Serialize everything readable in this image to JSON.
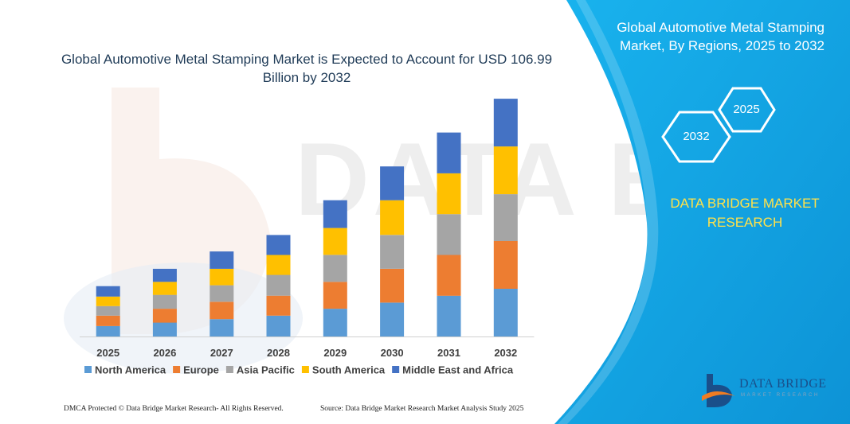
{
  "chart_title": "Global Automotive Metal Stamping Market is Expected to Account for USD 106.99 Billion by 2032",
  "side_panel": {
    "title": "Global Automotive Metal Stamping Market, By Regions, 2025 to 2032",
    "hex_2032": "2032",
    "hex_2025": "2025",
    "brand": "DATA BRIDGE MARKET RESEARCH",
    "panel_color": "#12a8e6"
  },
  "footer": {
    "left": "DMCA Protected © Data Bridge Market Research-  All Rights Reserved.",
    "right": "Source: Data Bridge Market Research  Market Analysis Study 2025"
  },
  "logo": {
    "name": "DATA BRIDGE",
    "sub": "MARKET RESEARCH"
  },
  "chart_data": {
    "type": "bar",
    "stacked": true,
    "title": "Global Automotive Metal Stamping Market is Expected to Account for USD 106.99 Billion by 2032",
    "xlabel": "",
    "ylabel": "",
    "grid": false,
    "legend_position": "bottom",
    "ylim": [
      0,
      275
    ],
    "categories": [
      "2025",
      "2026",
      "2027",
      "2028",
      "2029",
      "2030",
      "2031",
      "2032"
    ],
    "series": [
      {
        "name": "North America",
        "color": "#5b9bd5",
        "values": [
          12,
          16,
          20,
          24,
          32,
          39,
          47,
          55
        ]
      },
      {
        "name": "Europe",
        "color": "#ed7d31",
        "values": [
          12,
          16,
          20,
          23,
          31,
          39,
          47,
          55
        ]
      },
      {
        "name": "Asia Pacific",
        "color": "#a5a5a5",
        "values": [
          11,
          16,
          19,
          24,
          31,
          39,
          47,
          54
        ]
      },
      {
        "name": "South America",
        "color": "#ffc000",
        "values": [
          11,
          15,
          19,
          23,
          31,
          40,
          47,
          55
        ]
      },
      {
        "name": "Middle East and Africa",
        "color": "#4472c4",
        "values": [
          12,
          15,
          20,
          23,
          32,
          39,
          47,
          55
        ]
      }
    ]
  }
}
